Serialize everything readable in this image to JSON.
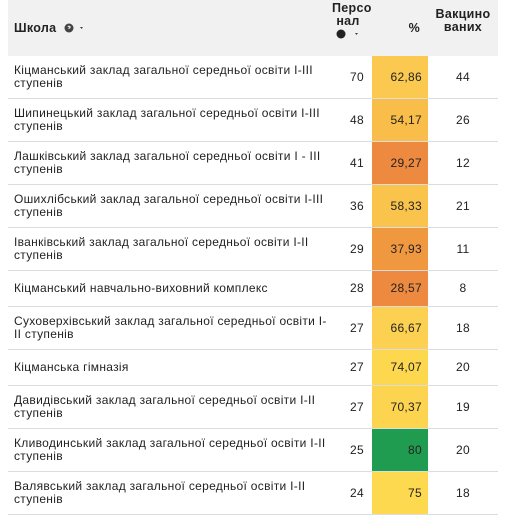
{
  "table": {
    "columns": [
      "Школа",
      "Персо нал",
      "%",
      "Вакцино ваних"
    ],
    "rows": [
      [
        "Кіцманський заклад загальної середньої освіти І-ІІІ ступенів",
        "70",
        "62,86",
        "44"
      ],
      [
        "Шипинецький заклад загальної середньої освіти І-ІІІ ступенів",
        "48",
        "54,17",
        "26"
      ],
      [
        "Лашківський заклад загальної середньої освіти І - ІІІ ступенів",
        "41",
        "29,27",
        "12"
      ],
      [
        "Ошихлібський заклад загальної середньої освіти І-ІІІ ступенів",
        "36",
        "58,33",
        "21"
      ],
      [
        "Іванківський заклад загальної середньої освіти І-ІІ ступенів",
        "29",
        "37,93",
        "11"
      ],
      [
        "Кіцманський навчально-виховний комплекс",
        "28",
        "28,57",
        "8"
      ],
      [
        "Суховерхівський заклад загальної середньої освіти І-ІІ ступенів",
        "27",
        "66,67",
        "18"
      ],
      [
        "Кіцманська гімназія",
        "27",
        "74,07",
        "20"
      ],
      [
        "Давидівський заклад загальної середньої освіти І-ІІ ступенів",
        "27",
        "70,37",
        "19"
      ],
      [
        "Кливодинський заклад загальної середньої освіти І-ІІ ступенів",
        "25",
        "80",
        "20"
      ],
      [
        "Валявський заклад загальної середньої освіти І-ІІ ступенів",
        "24",
        "75",
        "18"
      ]
    ],
    "percent_colors": [
      "#fbc94f",
      "#f9bd4a",
      "#ee8a3f",
      "#fac44c",
      "#f0983f",
      "#ee8a3f",
      "#fcd050",
      "#fdd84f",
      "#fdd44f",
      "#1f9c4f",
      "#fdd94f"
    ]
  }
}
